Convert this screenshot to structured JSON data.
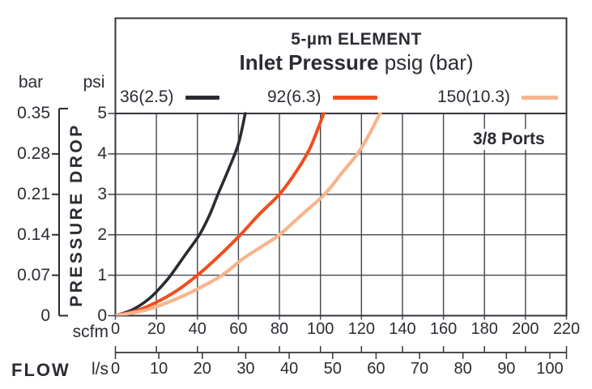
{
  "colors": {
    "text": "#2b2b33",
    "grid": "#46464e",
    "frame": "#35353d",
    "series_36": "#2b2b33",
    "series_92": "#f04e1f",
    "series_150": "#f8b48c"
  },
  "header": {
    "title_line1": "5-µm ELEMENT",
    "title_line2_bold": "Inlet Pressure",
    "title_line2_regular": " psig (bar)"
  },
  "legend": {
    "items": [
      {
        "label": "36(2.5)",
        "color": "#2b2b33"
      },
      {
        "label": "92(6.3)",
        "color": "#f04e1f"
      },
      {
        "label": "150(10.3)",
        "color": "#f8b48c"
      }
    ]
  },
  "annotation": {
    "ports_label": "3/8 Ports"
  },
  "axes": {
    "left_primary_unit": "bar",
    "left_secondary_unit": "psi",
    "y_axis_title": "PRESSURE DROP",
    "bar_ticks": [
      "0.35",
      "0.28",
      "0.21",
      "0.14",
      "0.07",
      "0"
    ],
    "psi_ticks": [
      "5",
      "4",
      "3",
      "2",
      "1",
      "0"
    ],
    "x_axis_title": "FLOW",
    "x_primary_unit": "scfm",
    "x_secondary_unit": "l/s",
    "scfm_ticks": [
      0,
      20,
      40,
      60,
      80,
      100,
      120,
      140,
      160,
      180,
      200,
      220
    ],
    "ls_ticks": [
      0,
      10,
      20,
      30,
      40,
      50,
      60,
      70,
      80,
      90,
      100
    ]
  },
  "chart_data": {
    "type": "line",
    "title": "5-µm ELEMENT",
    "subtitle": "Inlet Pressure psig (bar)",
    "annotation": "3/8 Ports",
    "xlabel": "FLOW",
    "x_units": [
      "scfm",
      "l/s"
    ],
    "ylabel": "PRESSURE DROP",
    "y_units": [
      "psi",
      "bar"
    ],
    "x_range_scfm": [
      0,
      220
    ],
    "x_range_ls": [
      0,
      100
    ],
    "y_range_psi": [
      0,
      5
    ],
    "y_range_bar": [
      0,
      0.35
    ],
    "grid": true,
    "legend_position": "top",
    "series": [
      {
        "name": "36(2.5)",
        "color": "#2b2b33",
        "points_scfm_psi": [
          [
            0,
            0
          ],
          [
            8,
            0.14
          ],
          [
            16,
            0.4
          ],
          [
            22,
            0.7
          ],
          [
            27,
            1
          ],
          [
            34,
            1.5
          ],
          [
            41,
            2
          ],
          [
            46,
            2.5
          ],
          [
            50,
            3
          ],
          [
            55,
            3.6
          ],
          [
            60,
            4.25
          ],
          [
            63.5,
            5.05
          ]
        ]
      },
      {
        "name": "92(6.3)",
        "color": "#f04e1f",
        "points_scfm_psi": [
          [
            0,
            0
          ],
          [
            10,
            0.12
          ],
          [
            20,
            0.33
          ],
          [
            30,
            0.62
          ],
          [
            40,
            1
          ],
          [
            50,
            1.45
          ],
          [
            61,
            2
          ],
          [
            70,
            2.5
          ],
          [
            80,
            3
          ],
          [
            88,
            3.55
          ],
          [
            95,
            4.15
          ],
          [
            102,
            5.05
          ]
        ]
      },
      {
        "name": "150(10.3)",
        "color": "#f8b48c",
        "points_scfm_psi": [
          [
            0,
            0
          ],
          [
            15,
            0.14
          ],
          [
            30,
            0.42
          ],
          [
            40,
            0.66
          ],
          [
            52,
            1
          ],
          [
            62,
            1.4
          ],
          [
            71,
            1.7
          ],
          [
            80,
            2
          ],
          [
            91,
            2.5
          ],
          [
            102,
            3
          ],
          [
            110,
            3.5
          ],
          [
            118,
            4
          ],
          [
            124,
            4.5
          ],
          [
            129.5,
            5.05
          ]
        ]
      }
    ]
  }
}
